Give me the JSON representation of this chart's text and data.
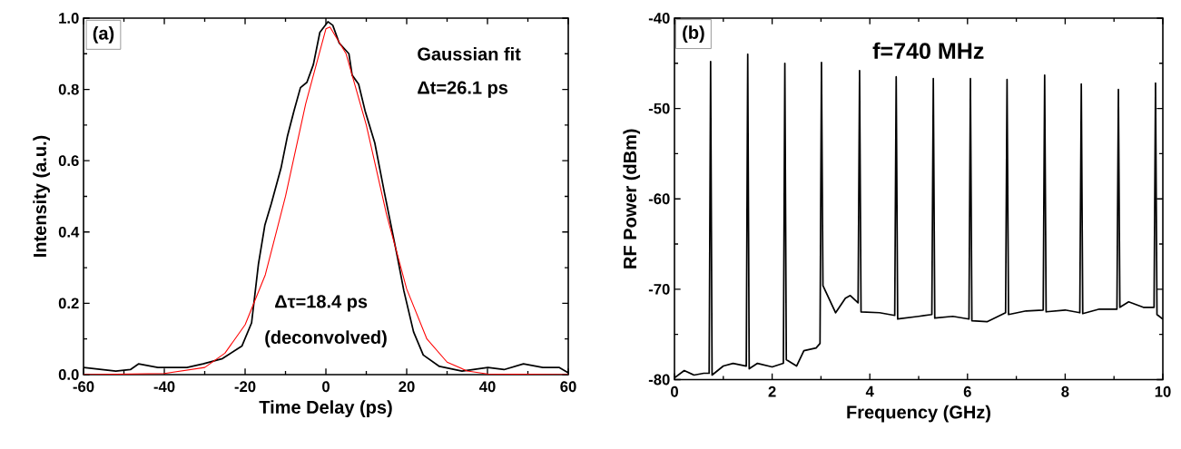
{
  "chart_data": [
    {
      "type": "line",
      "xlabel": "Time Delay (ps)",
      "ylabel": "Intensity (a.u.)",
      "xlim": [
        -60,
        60
      ],
      "ylim": [
        0,
        1.0
      ],
      "xticks": [
        -60,
        -40,
        -20,
        0,
        20,
        40,
        60
      ],
      "yticks": [
        {
          "value": 0,
          "label": "0.0"
        },
        {
          "value": 0.2,
          "label": "0.2"
        },
        {
          "value": 0.4,
          "label": "0.4"
        },
        {
          "value": 0.6,
          "label": "0.6"
        },
        {
          "value": 0.8,
          "label": "0.8"
        },
        {
          "value": 1.0,
          "label": "1.0"
        }
      ],
      "annotations": [
        "(a)",
        "Gaussian fit",
        "Δt=26.1 ps",
        "Δτ=18.4 ps",
        "(deconvolved)"
      ],
      "series": [
        {
          "color": "#000000",
          "x": [
            -60,
            -52,
            -48.4,
            -46.4,
            -41.6,
            -34.4,
            -30.4,
            -25.6,
            -20.8,
            -18.4,
            -16.7,
            -15.1,
            -13.5,
            -11.1,
            -9.5,
            -7.9,
            -6.3,
            -4.7,
            -3.1,
            -1.5,
            0.5,
            1.7,
            3.3,
            5.7,
            6.5,
            8.1,
            9.7,
            12.1,
            14.5,
            16.1,
            17.7,
            19.3,
            21.7,
            24.1,
            28.1,
            33.7,
            40.1,
            44.1,
            48.9,
            53.7,
            57.7,
            60
          ],
          "values": [
            0.02,
            0.01,
            0.014,
            0.03,
            0.02,
            0.02,
            0.03,
            0.045,
            0.08,
            0.145,
            0.31,
            0.42,
            0.48,
            0.58,
            0.67,
            0.74,
            0.805,
            0.82,
            0.87,
            0.96,
            0.99,
            0.98,
            0.93,
            0.9,
            0.84,
            0.815,
            0.74,
            0.65,
            0.51,
            0.42,
            0.33,
            0.235,
            0.12,
            0.055,
            0.023,
            0.01,
            0.02,
            0.014,
            0.03,
            0.02,
            0.02,
            0.005
          ]
        },
        {
          "color": "#ff0000",
          "x": [
            -60,
            -40,
            -30,
            -25,
            -20,
            -15,
            -10,
            -5,
            0,
            1,
            5,
            10,
            15,
            20,
            25,
            30,
            35,
            40,
            60
          ],
          "values": [
            0,
            0.003,
            0.02,
            0.06,
            0.14,
            0.28,
            0.5,
            0.76,
            0.97,
            0.975,
            0.9,
            0.7,
            0.45,
            0.24,
            0.1,
            0.035,
            0.01,
            0.002,
            0
          ]
        }
      ]
    },
    {
      "type": "line",
      "xlabel": "Frequency (GHz)",
      "ylabel": "RF Power (dBm)",
      "xlim": [
        0,
        10
      ],
      "ylim": [
        -80,
        -40
      ],
      "xticks": [
        0,
        2,
        4,
        6,
        8,
        10
      ],
      "yticks": [
        -80,
        -70,
        -60,
        -50,
        -40
      ],
      "annotations": [
        "(b)",
        "f=740 MHz"
      ],
      "series": [
        {
          "color": "#000000",
          "x": [
            0,
            0.2,
            0.4,
            0.6,
            0.71,
            0.74,
            0.77,
            1.0,
            1.2,
            1.47,
            1.5,
            1.53,
            1.7,
            2.0,
            2.23,
            2.26,
            2.29,
            2.5,
            2.65,
            2.9,
            2.98,
            3.01,
            3.04,
            3.3,
            3.5,
            3.6,
            3.76,
            3.79,
            3.82,
            4.2,
            4.51,
            4.54,
            4.57,
            5.0,
            5.27,
            5.3,
            5.33,
            5.7,
            6.03,
            6.06,
            6.09,
            6.4,
            6.78,
            6.81,
            6.84,
            7.2,
            7.55,
            7.58,
            7.61,
            8.0,
            8.3,
            8.33,
            8.36,
            8.7,
            9.06,
            9.09,
            9.12,
            9.3,
            9.6,
            9.82,
            9.85,
            9.88,
            10
          ],
          "values": [
            -79.8,
            -79.0,
            -79.5,
            -79.3,
            -79.3,
            -44.8,
            -79.5,
            -78.5,
            -78.2,
            -78.5,
            -44.0,
            -78.8,
            -78.2,
            -78.6,
            -78.2,
            -45.0,
            -77.8,
            -78.5,
            -76.8,
            -76.5,
            -76.0,
            -44.9,
            -69.6,
            -72.6,
            -71.0,
            -70.7,
            -71.5,
            -45.8,
            -72.5,
            -72.6,
            -72.9,
            -46.5,
            -73.3,
            -73.0,
            -72.8,
            -46.7,
            -73.2,
            -73.0,
            -73.3,
            -46.7,
            -73.5,
            -73.6,
            -72.6,
            -46.8,
            -72.8,
            -72.4,
            -72.3,
            -46.3,
            -72.5,
            -72.3,
            -72.6,
            -47.3,
            -72.7,
            -72.2,
            -72.2,
            -47.9,
            -72.0,
            -71.4,
            -72.0,
            -72.0,
            -47.2,
            -72.8,
            -73.3
          ]
        }
      ]
    }
  ]
}
